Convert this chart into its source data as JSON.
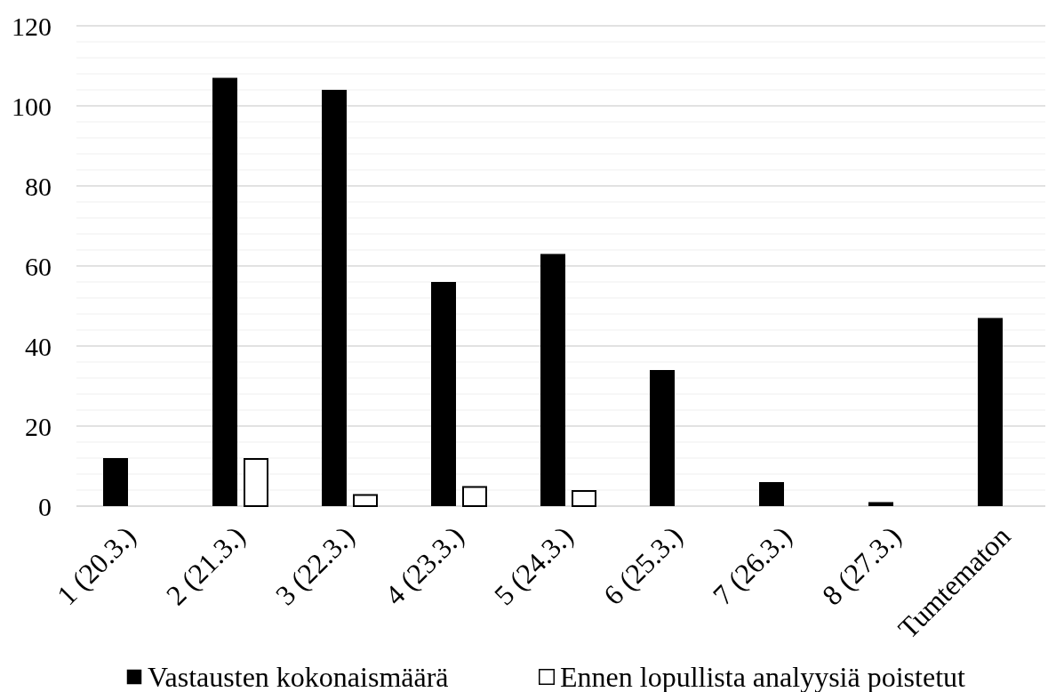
{
  "chart_data": {
    "type": "bar",
    "categories": [
      "1 (20.3.)",
      "2 (21.3.)",
      "3 (22.3.)",
      "4 (23.3.)",
      "5 (24.3.)",
      "6 (25.3.)",
      "7 (26.3.)",
      "8 (27.3.)",
      "Tumtematon"
    ],
    "series": [
      {
        "name": "Vastausten kokonaismäärä",
        "color": "#000000",
        "values": [
          12,
          107,
          104,
          56,
          63,
          34,
          6,
          1,
          47
        ]
      },
      {
        "name": "Ennen lopullista analyysiä poistetut",
        "color": "#ffffff",
        "values": [
          null,
          12,
          3,
          5,
          4,
          null,
          null,
          null,
          null
        ]
      }
    ],
    "ylim": [
      0,
      120
    ],
    "yticks": [
      0,
      {
        "value": 4,
        "label": null
      },
      {
        "value": 8,
        "label": null
      },
      {
        "value": 12,
        "label": null
      },
      {
        "value": 16,
        "label": null
      },
      20,
      {
        "value": 24,
        "label": null
      },
      {
        "value": 28,
        "label": null
      },
      {
        "value": 32,
        "label": null
      },
      {
        "value": 36,
        "label": null
      },
      40,
      {
        "value": 44,
        "label": null
      },
      {
        "value": 48,
        "label": null
      },
      {
        "value": 52,
        "label": null
      },
      {
        "value": 56,
        "label": null
      },
      60,
      {
        "value": 64,
        "label": null
      },
      {
        "value": 68,
        "label": null
      },
      {
        "value": 72,
        "label": null
      },
      {
        "value": 76,
        "label": null
      },
      80,
      {
        "value": 84,
        "label": null
      },
      {
        "value": 88,
        "label": null
      },
      {
        "value": 92,
        "label": null
      },
      {
        "value": 96,
        "label": null
      },
      100,
      {
        "value": 104,
        "label": null
      },
      {
        "value": 108,
        "label": null
      },
      {
        "value": 112,
        "label": null
      },
      {
        "value": 116,
        "label": null
      },
      120
    ],
    "grid": "y",
    "legend": "bottom"
  }
}
